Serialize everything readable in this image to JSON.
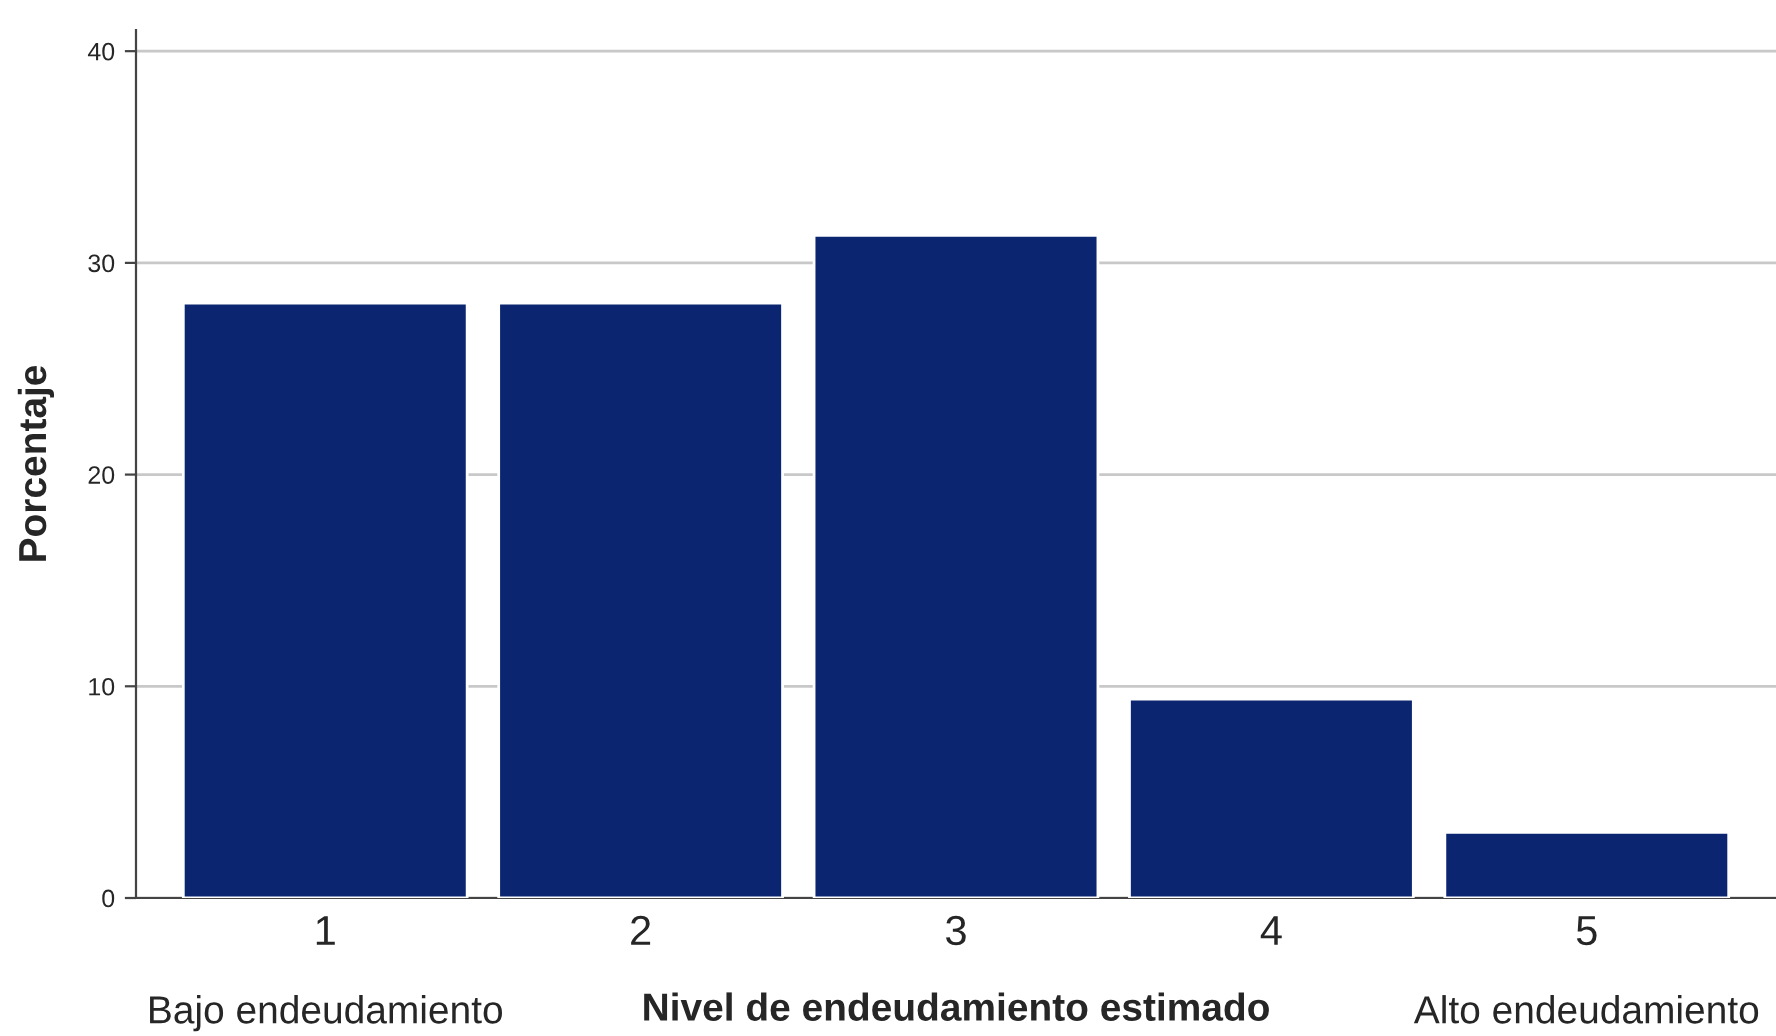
{
  "chart_data": {
    "type": "bar",
    "xlabel": "Nivel de endeudamiento estimado",
    "ylabel": "Porcentaje",
    "categories": [
      "1",
      "2",
      "3",
      "4",
      "5"
    ],
    "values": [
      28.1,
      28.1,
      31.3,
      9.4,
      3.1
    ],
    "color": "#0b2570",
    "ylim": [
      0,
      41
    ],
    "yticks": [
      0,
      10,
      20,
      30,
      40
    ],
    "grid": "y",
    "annotations": [
      "Bajo endeudamiento",
      "Alto endeudamiento"
    ]
  }
}
